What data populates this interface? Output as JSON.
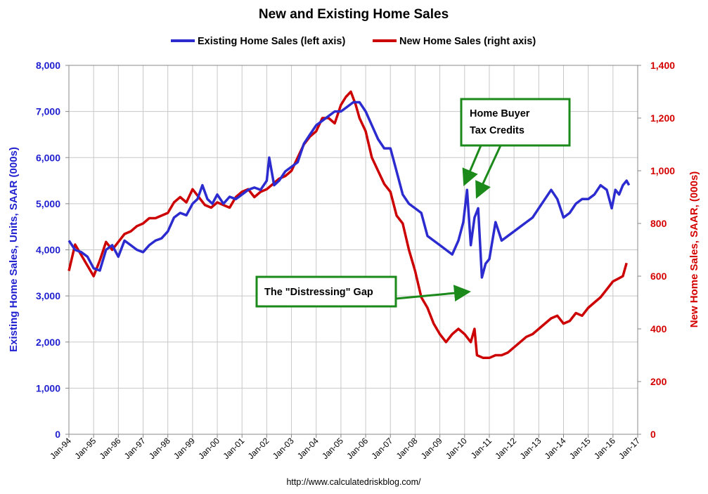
{
  "chart_data": {
    "type": "line",
    "title": "New and Existing Home Sales",
    "y_left": {
      "label": "Existing Home Sales, Units, SAAR (000s)",
      "range": [
        0,
        8000
      ],
      "ticks": [
        "0",
        "1,000",
        "2,000",
        "3,000",
        "4,000",
        "5,000",
        "6,000",
        "7,000",
        "8,000"
      ],
      "color": "#2b2bcf"
    },
    "y_right": {
      "label": "New Home Sales, SAAR, (000s)",
      "range": [
        0,
        1400
      ],
      "ticks": [
        "0",
        "200",
        "400",
        "600",
        "800",
        "1,000",
        "1,200",
        "1,400"
      ],
      "color": "#d40000"
    },
    "x_range": [
      1994.0,
      2017.0
    ],
    "x_ticks": [
      "Jan-94",
      "Jan-95",
      "Jan-96",
      "Jan-97",
      "Jan-98",
      "Jan-99",
      "Jan-00",
      "Jan-01",
      "Jan-02",
      "Jan-03",
      "Jan-04",
      "Jan-05",
      "Jan-06",
      "Jan-07",
      "Jan-08",
      "Jan-09",
      "Jan-10",
      "Jan-11",
      "Jan-12",
      "Jan-13",
      "Jan-14",
      "Jan-15",
      "Jan-16",
      "Jan-17"
    ],
    "grid": true,
    "legend_position": "top",
    "series": [
      {
        "name": "Existing Home Sales (left axis)",
        "axis": "left",
        "color": "#2b2bcf",
        "x": [
          1994.0,
          1994.25,
          1994.5,
          1994.75,
          1995.0,
          1995.25,
          1995.5,
          1995.75,
          1996.0,
          1996.25,
          1996.5,
          1996.75,
          1997.0,
          1997.25,
          1997.5,
          1997.75,
          1998.0,
          1998.25,
          1998.5,
          1998.75,
          1999.0,
          1999.2,
          1999.4,
          1999.6,
          1999.8,
          2000.0,
          2000.25,
          2000.5,
          2000.75,
          2001.0,
          2001.25,
          2001.5,
          2001.75,
          2002.0,
          2002.1,
          2002.3,
          2002.5,
          2002.75,
          2003.0,
          2003.25,
          2003.5,
          2003.75,
          2004.0,
          2004.25,
          2004.5,
          2004.75,
          2005.0,
          2005.25,
          2005.5,
          2005.75,
          2006.0,
          2006.25,
          2006.5,
          2006.75,
          2007.0,
          2007.25,
          2007.5,
          2007.75,
          2008.0,
          2008.25,
          2008.5,
          2008.75,
          2009.0,
          2009.25,
          2009.5,
          2009.75,
          2009.95,
          2010.1,
          2010.25,
          2010.4,
          2010.55,
          2010.7,
          2010.85,
          2011.0,
          2011.25,
          2011.5,
          2011.75,
          2012.0,
          2012.25,
          2012.5,
          2012.75,
          2013.0,
          2013.25,
          2013.5,
          2013.75,
          2014.0,
          2014.25,
          2014.5,
          2014.75,
          2015.0,
          2015.25,
          2015.5,
          2015.75,
          2015.95,
          2016.1,
          2016.25,
          2016.4,
          2016.55,
          2016.65
        ],
        "values": [
          4200,
          4000,
          3950,
          3850,
          3600,
          3550,
          4000,
          4100,
          3850,
          4200,
          4100,
          4000,
          3950,
          4100,
          4200,
          4250,
          4400,
          4700,
          4800,
          4750,
          5000,
          5100,
          5400,
          5100,
          5000,
          5200,
          5000,
          5150,
          5100,
          5200,
          5300,
          5350,
          5300,
          5500,
          6000,
          5400,
          5500,
          5700,
          5800,
          5900,
          6300,
          6500,
          6700,
          6800,
          6900,
          7000,
          7000,
          7100,
          7200,
          7200,
          7000,
          6700,
          6400,
          6200,
          6200,
          5700,
          5200,
          5000,
          4900,
          4800,
          4300,
          4200,
          4100,
          4000,
          3900,
          4200,
          4600,
          5300,
          4100,
          4700,
          4900,
          3400,
          3700,
          3800,
          4600,
          4200,
          4300,
          4400,
          4500,
          4600,
          4700,
          4900,
          5100,
          5300,
          5100,
          4700,
          4800,
          5000,
          5100,
          5100,
          5200,
          5400,
          5300,
          4900,
          5300,
          5200,
          5400,
          5500,
          5400
        ]
      },
      {
        "name": "New Home Sales (right axis)",
        "axis": "right",
        "color": "#cc0000",
        "x": [
          1994.0,
          1994.25,
          1994.5,
          1994.75,
          1995.0,
          1995.25,
          1995.5,
          1995.75,
          1996.0,
          1996.25,
          1996.5,
          1996.75,
          1997.0,
          1997.25,
          1997.5,
          1997.75,
          1998.0,
          1998.25,
          1998.5,
          1998.75,
          1999.0,
          1999.25,
          1999.5,
          1999.75,
          2000.0,
          2000.25,
          2000.5,
          2000.75,
          2001.0,
          2001.25,
          2001.5,
          2001.75,
          2002.0,
          2002.25,
          2002.5,
          2002.75,
          2003.0,
          2003.25,
          2003.5,
          2003.75,
          2004.0,
          2004.25,
          2004.5,
          2004.75,
          2005.0,
          2005.2,
          2005.4,
          2005.6,
          2005.75,
          2006.0,
          2006.25,
          2006.5,
          2006.75,
          2007.0,
          2007.25,
          2007.5,
          2007.75,
          2008.0,
          2008.25,
          2008.5,
          2008.75,
          2009.0,
          2009.25,
          2009.5,
          2009.75,
          2010.0,
          2010.25,
          2010.4,
          2010.5,
          2010.75,
          2011.0,
          2011.25,
          2011.5,
          2011.75,
          2012.0,
          2012.25,
          2012.5,
          2012.75,
          2013.0,
          2013.25,
          2013.5,
          2013.75,
          2014.0,
          2014.25,
          2014.5,
          2014.75,
          2015.0,
          2015.25,
          2015.5,
          2015.75,
          2016.0,
          2016.2,
          2016.4,
          2016.55
        ],
        "values": [
          620,
          720,
          680,
          640,
          600,
          660,
          730,
          700,
          730,
          760,
          770,
          790,
          800,
          820,
          820,
          830,
          840,
          880,
          900,
          880,
          930,
          900,
          870,
          860,
          880,
          870,
          860,
          900,
          920,
          930,
          900,
          920,
          930,
          950,
          970,
          980,
          1000,
          1050,
          1100,
          1130,
          1150,
          1200,
          1200,
          1180,
          1250,
          1280,
          1300,
          1250,
          1200,
          1150,
          1050,
          1000,
          950,
          920,
          830,
          800,
          700,
          620,
          520,
          480,
          420,
          380,
          350,
          380,
          400,
          380,
          350,
          400,
          300,
          290,
          290,
          300,
          300,
          310,
          330,
          350,
          370,
          380,
          400,
          420,
          440,
          450,
          420,
          430,
          460,
          450,
          480,
          500,
          520,
          550,
          580,
          590,
          600,
          650
        ]
      }
    ],
    "annotations": [
      {
        "text_lines": [
          "Home Buyer",
          "Tax Credits"
        ]
      },
      {
        "text_lines": [
          "The \"Distressing\" Gap"
        ]
      }
    ],
    "source": "http://www.calculatedriskblog.com/"
  }
}
